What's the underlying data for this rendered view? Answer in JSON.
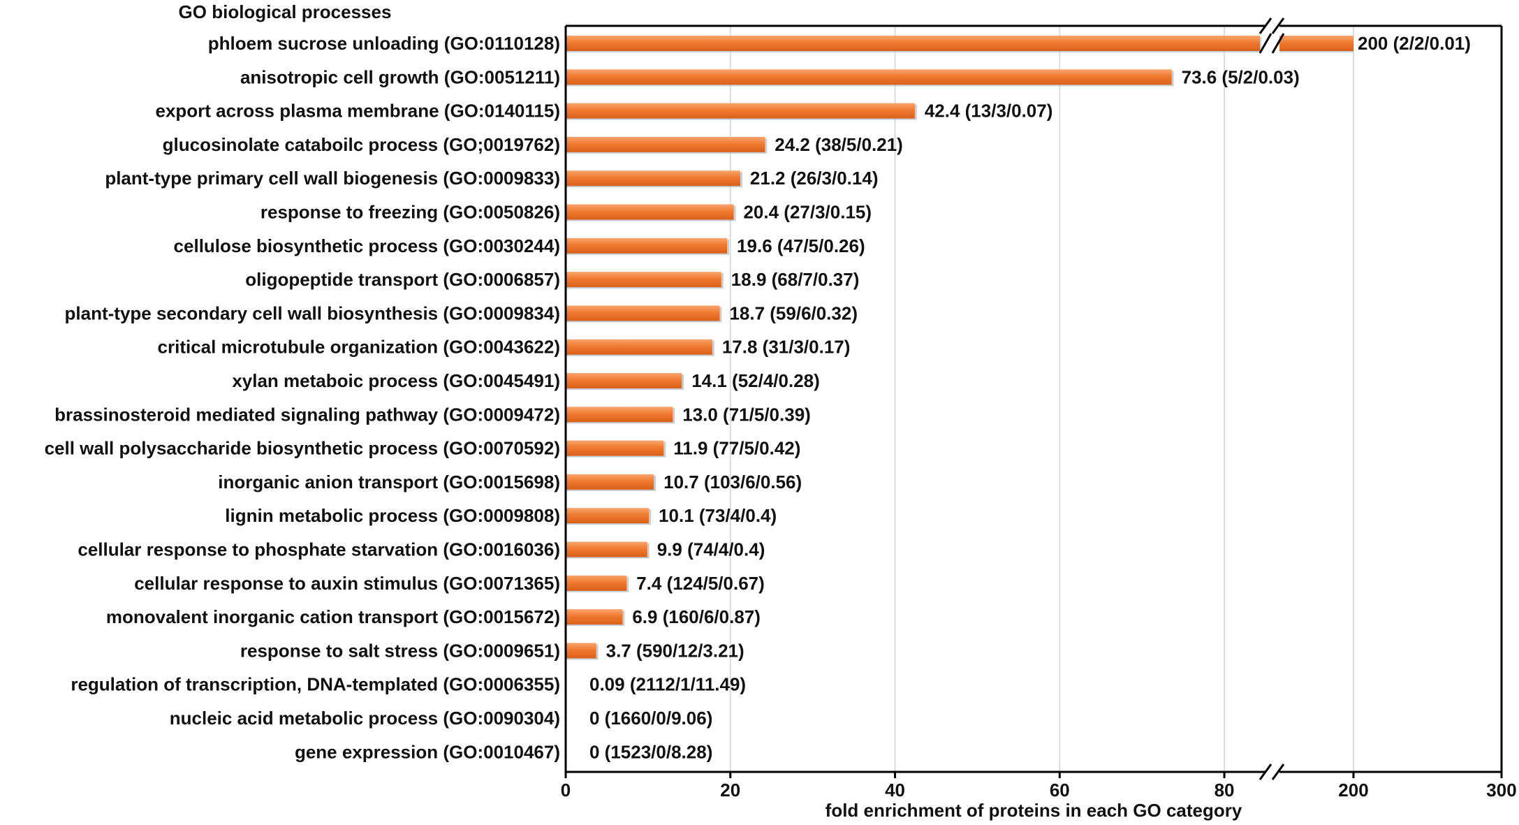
{
  "chart_data": {
    "type": "bar",
    "orientation": "horizontal",
    "title": "GO biological processes",
    "xlabel": "fold enrichment of proteins in each GO category",
    "ylabel": "",
    "bar_color": "#F07A30",
    "axis_break": {
      "lower_range": [
        0,
        85
      ],
      "upper_range": [
        150,
        300
      ]
    },
    "xticks_lower": [
      0,
      20,
      40,
      60,
      80
    ],
    "xticks_upper": [
      200,
      300
    ],
    "grid": true,
    "categories": [
      "phloem sucrose unloading (GO:0110128)",
      "anisotropic cell growth (GO:0051211)",
      "export across plasma membrane (GO:0140115)",
      "glucosinolate cataboilc process (GO;0019762)",
      "plant-type primary cell wall biogenesis (GO:0009833)",
      "response to freezing (GO:0050826)",
      "cellulose biosynthetic process (GO:0030244)",
      "oligopeptide transport (GO:0006857)",
      "plant-type secondary cell wall biosynthesis (GO:0009834)",
      "critical microtubule organization (GO:0043622)",
      "xylan metaboic process (GO:0045491)",
      "brassinosteroid mediated signaling pathway (GO:0009472)",
      "cell wall polysaccharide biosynthetic process (GO:0070592)",
      "inorganic anion transport (GO:0015698)",
      "lignin metabolic process (GO:0009808)",
      "cellular response to phosphate starvation (GO:0016036)",
      "cellular response to auxin stimulus (GO:0071365)",
      "monovalent inorganic cation transport (GO:0015672)",
      "response to salt stress (GO:0009651)",
      "regulation of transcription, DNA-templated (GO:0006355)",
      "nucleic acid metabolic process (GO:0090304)",
      "gene expression (GO:0010467)"
    ],
    "values": [
      200,
      73.6,
      42.4,
      24.2,
      21.2,
      20.4,
      19.6,
      18.9,
      18.7,
      17.8,
      14.1,
      13.0,
      11.9,
      10.7,
      10.1,
      9.9,
      7.4,
      6.9,
      3.7,
      0.09,
      0,
      0
    ],
    "data_labels": [
      "200 (2/2/0.01)",
      "73.6 (5/2/0.03)",
      "42.4 (13/3/0.07)",
      "24.2 (38/5/0.21)",
      "21.2 (26/3/0.14)",
      "20.4 (27/3/0.15)",
      "19.6 (47/5/0.26)",
      "18.9 (68/7/0.37)",
      "18.7 (59/6/0.32)",
      "17.8 (31/3/0.17)",
      "14.1 (52/4/0.28)",
      "13.0 (71/5/0.39)",
      "11.9 (77/5/0.42)",
      "10.7 (103/6/0.56)",
      "10.1 (73/4/0.4)",
      "9.9 (74/4/0.4)",
      "7.4 (124/5/0.67)",
      "6.9 (160/6/0.87)",
      "3.7 (590/12/3.21)",
      "0.09 (2112/1/11.49)",
      "0 (1660/0/9.06)",
      "0 (1523/0/8.28)"
    ]
  }
}
